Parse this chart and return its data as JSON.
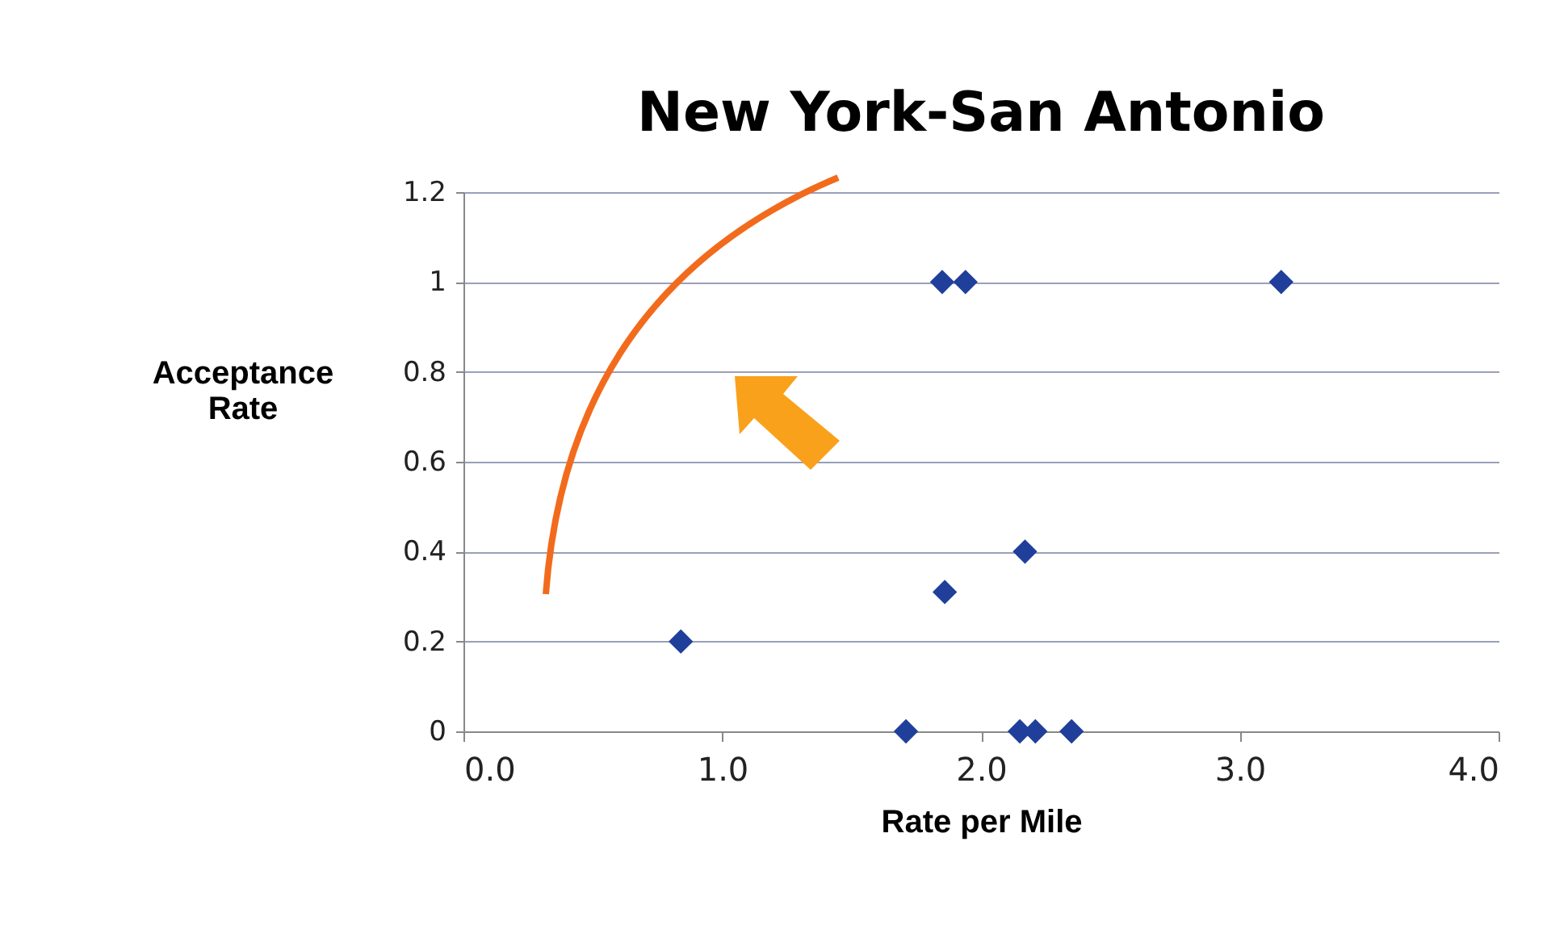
{
  "chart_data": {
    "type": "scatter",
    "title": "New York-San Antonio",
    "xlabel": "Rate per Mile",
    "ylabel": "Acceptance Rate",
    "x": [
      0.84,
      1.85,
      1.94,
      3.16,
      1.86,
      2.17,
      1.71,
      2.15,
      2.21,
      2.35
    ],
    "series": [
      {
        "color": "#1f3f9a",
        "values": [
          0.2,
          1,
          1,
          1,
          0.31,
          0.4,
          0,
          0,
          0,
          0
        ]
      }
    ],
    "xlim": [
      0,
      4
    ],
    "xticks": [
      {
        "value": 0,
        "label": "0.0"
      },
      {
        "value": 1,
        "label": "1.0"
      },
      {
        "value": 2,
        "label": "2.0"
      },
      {
        "value": 3,
        "label": "3.0"
      },
      {
        "value": 4,
        "label": "4.0"
      }
    ],
    "ylim": [
      0,
      1.2
    ],
    "yticks": [
      0,
      0.2,
      0.4,
      0.6,
      0.8,
      1,
      1.2
    ],
    "grid": "y",
    "marker": "diamond",
    "legend": false
  }
}
